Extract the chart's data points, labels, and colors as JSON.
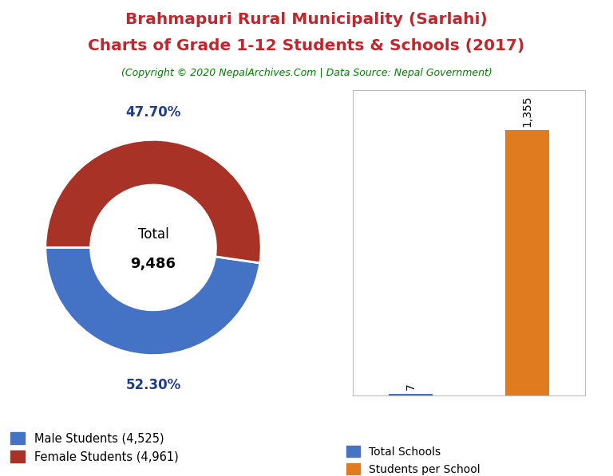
{
  "title_line1": "Brahmapuri Rural Municipality (Sarlahi)",
  "title_line2": "Charts of Grade 1-12 Students & Schools (2017)",
  "copyright": "(Copyright © 2020 NepalArchives.Com | Data Source: Nepal Government)",
  "title_color": "#C0272D",
  "copyright_color": "#008000",
  "male_students": 4525,
  "female_students": 4961,
  "total_students": 9486,
  "male_pct": "47.70%",
  "female_pct": "52.30%",
  "pct_label_color": "#1F3C88",
  "male_color": "#4472C4",
  "female_color": "#A93226",
  "total_schools": 7,
  "students_per_school": 1355,
  "bar_school_color": "#4472C4",
  "bar_sps_color": "#E07B20",
  "legend_school": "Total Schools",
  "legend_sps": "Students per School",
  "legend_male": "Male Students (4,525)",
  "legend_female": "Female Students (4,961)",
  "bg_color": "#FFFFFF"
}
